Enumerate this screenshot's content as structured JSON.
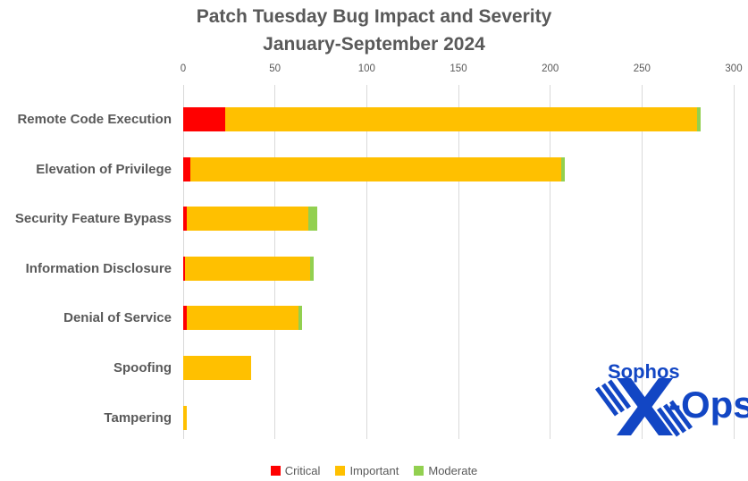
{
  "title": {
    "line1": "Patch Tuesday Bug Impact and Severity",
    "line2": "January-September 2024"
  },
  "chart_data": {
    "type": "bar",
    "orientation": "horizontal",
    "stacked": true,
    "title": "Patch Tuesday Bug Impact and Severity January-September 2024",
    "categories": [
      "Remote Code Execution",
      "Elevation of Privilege",
      "Security Feature Bypass",
      "Information Disclosure",
      "Denial of Service",
      "Spoofing",
      "Tampering"
    ],
    "series": [
      {
        "name": "Critical",
        "color": "#FF0000",
        "values": [
          23,
          4,
          2,
          1,
          2,
          0,
          0
        ]
      },
      {
        "name": "Important",
        "color": "#FFC000",
        "values": [
          257,
          202,
          66,
          68,
          61,
          37,
          2
        ]
      },
      {
        "name": "Moderate",
        "color": "#92D050",
        "values": [
          2,
          2,
          5,
          2,
          2,
          0,
          0
        ]
      }
    ],
    "totals": [
      282,
      208,
      73,
      71,
      65,
      37,
      2
    ],
    "xlim": [
      0,
      300
    ],
    "x_ticks": [
      0,
      50,
      100,
      150,
      200,
      250,
      300
    ],
    "grid": "vertical-gridlines-at-ticks",
    "legend_position": "bottom",
    "gridline_color": "#D9D9D9",
    "text_color": "#595959"
  },
  "logo": {
    "brand": "Sophos",
    "team": "X-Ops",
    "ops_text": "-Ops",
    "color": "#1246C4"
  }
}
